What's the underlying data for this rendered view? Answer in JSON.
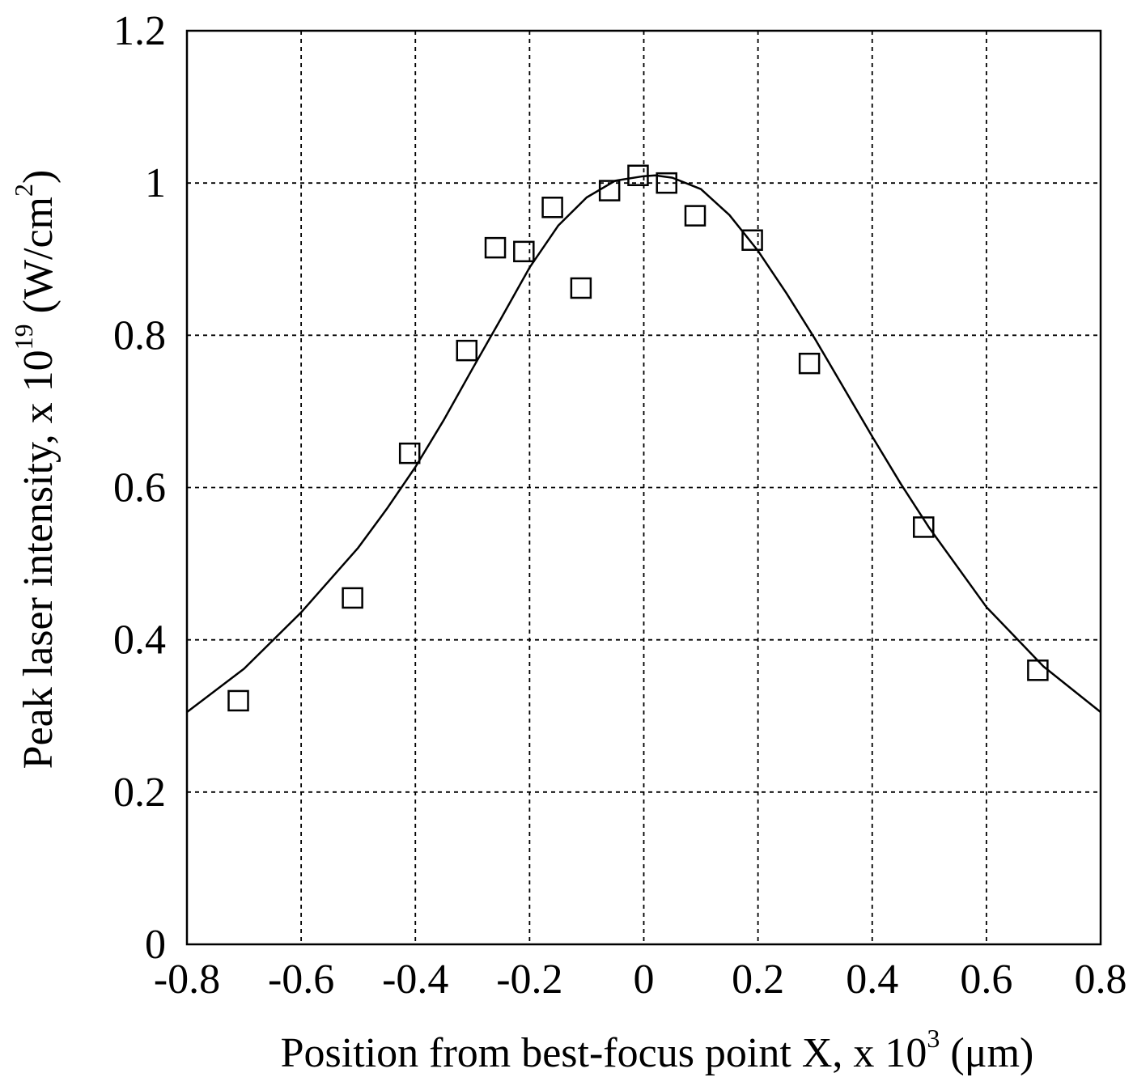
{
  "chart_data": {
    "type": "scatter",
    "title": "",
    "xlabel": {
      "base": "Position from best-focus point X, x 10",
      "sup": "3",
      "suffix": " (μm)"
    },
    "ylabel": {
      "base": "Peak laser intensity, x 10",
      "sup": "19",
      "middle": " (W/cm",
      "sup2": "2",
      "suffix": ")"
    },
    "xlim": [
      -0.8,
      0.8
    ],
    "ylim": [
      0,
      1.2
    ],
    "x_ticks": [
      -0.8,
      -0.6,
      -0.4,
      -0.2,
      0,
      0.2,
      0.4,
      0.6,
      0.8
    ],
    "y_ticks": [
      0,
      0.2,
      0.4,
      0.6,
      0.8,
      1,
      1.2
    ],
    "x_tick_labels": [
      "-0.8",
      "-0.6",
      "-0.4",
      "-0.2",
      "0",
      "0.2",
      "0.4",
      "0.6",
      "0.8"
    ],
    "y_tick_labels": [
      "0",
      "0.2",
      "0.4",
      "0.6",
      "0.8",
      "1",
      "1.2"
    ],
    "grid": true,
    "legend": "none",
    "series": [
      {
        "kind": "points",
        "marker": "open-square",
        "x": [
          -0.71,
          -0.51,
          -0.41,
          -0.31,
          -0.26,
          -0.21,
          -0.16,
          -0.11,
          -0.06,
          -0.01,
          0.04,
          0.09,
          0.19,
          0.29,
          0.49,
          0.69
        ],
        "y": [
          0.32,
          0.455,
          0.645,
          0.78,
          0.915,
          0.91,
          0.968,
          0.862,
          0.99,
          1.01,
          1.0,
          0.957,
          0.925,
          0.763,
          0.548,
          0.36
        ]
      },
      {
        "kind": "fit-curve",
        "x": [
          -0.8,
          -0.7,
          -0.6,
          -0.5,
          -0.45,
          -0.4,
          -0.35,
          -0.3,
          -0.25,
          -0.2,
          -0.15,
          -0.1,
          -0.05,
          0,
          0.02,
          0.05,
          0.1,
          0.15,
          0.2,
          0.25,
          0.3,
          0.35,
          0.4,
          0.45,
          0.5,
          0.6,
          0.7,
          0.8
        ],
        "y": [
          0.305,
          0.362,
          0.436,
          0.521,
          0.572,
          0.627,
          0.689,
          0.756,
          0.822,
          0.889,
          0.944,
          0.981,
          1.003,
          1.009,
          1.01,
          1.007,
          0.992,
          0.958,
          0.911,
          0.855,
          0.795,
          0.731,
          0.667,
          0.605,
          0.547,
          0.443,
          0.365,
          0.305
        ]
      }
    ]
  }
}
